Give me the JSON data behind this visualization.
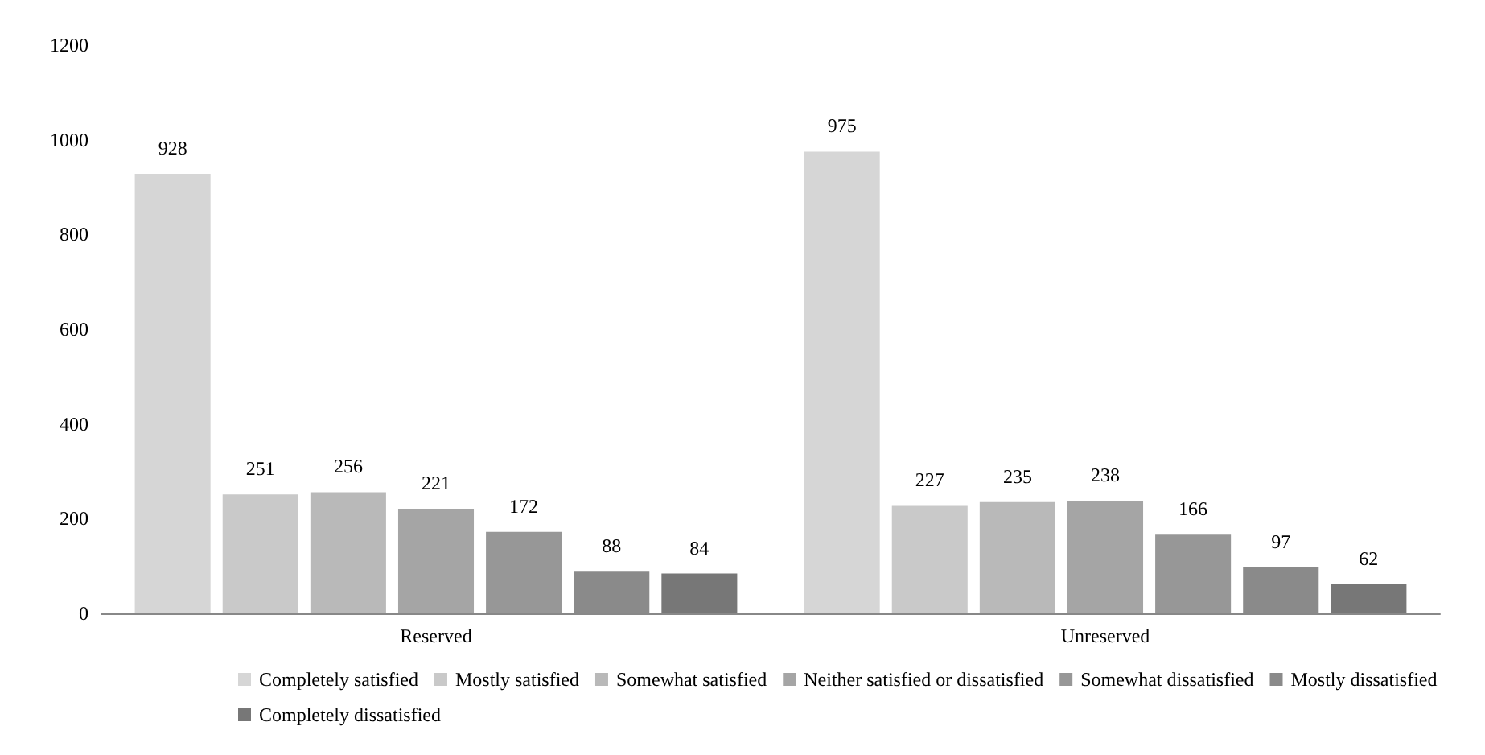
{
  "chart_data": {
    "type": "bar",
    "categories": [
      "Reserved",
      "Unreserved"
    ],
    "series": [
      {
        "name": "Completely satisfied",
        "color": "#d6d6d6",
        "values": [
          928,
          975
        ]
      },
      {
        "name": "Mostly satisfied",
        "color": "#c9c9c9",
        "values": [
          251,
          227
        ]
      },
      {
        "name": "Somewhat satisfied",
        "color": "#b9b9b9",
        "values": [
          256,
          235
        ]
      },
      {
        "name": "Neither satisfied or dissatisfied",
        "color": "#a5a5a5",
        "values": [
          221,
          238
        ]
      },
      {
        "name": "Somewhat dissatisfied",
        "color": "#979797",
        "values": [
          172,
          166
        ]
      },
      {
        "name": "Mostly dissatisfied",
        "color": "#8a8a8a",
        "values": [
          88,
          97
        ]
      },
      {
        "name": "Completely dissatisfied",
        "color": "#777777",
        "values": [
          84,
          62
        ]
      }
    ],
    "ylim": [
      0,
      1200
    ],
    "yticks": [
      0,
      200,
      400,
      600,
      800,
      1000,
      1200
    ],
    "grid": false,
    "legend": "bottom",
    "data_labels": true
  }
}
